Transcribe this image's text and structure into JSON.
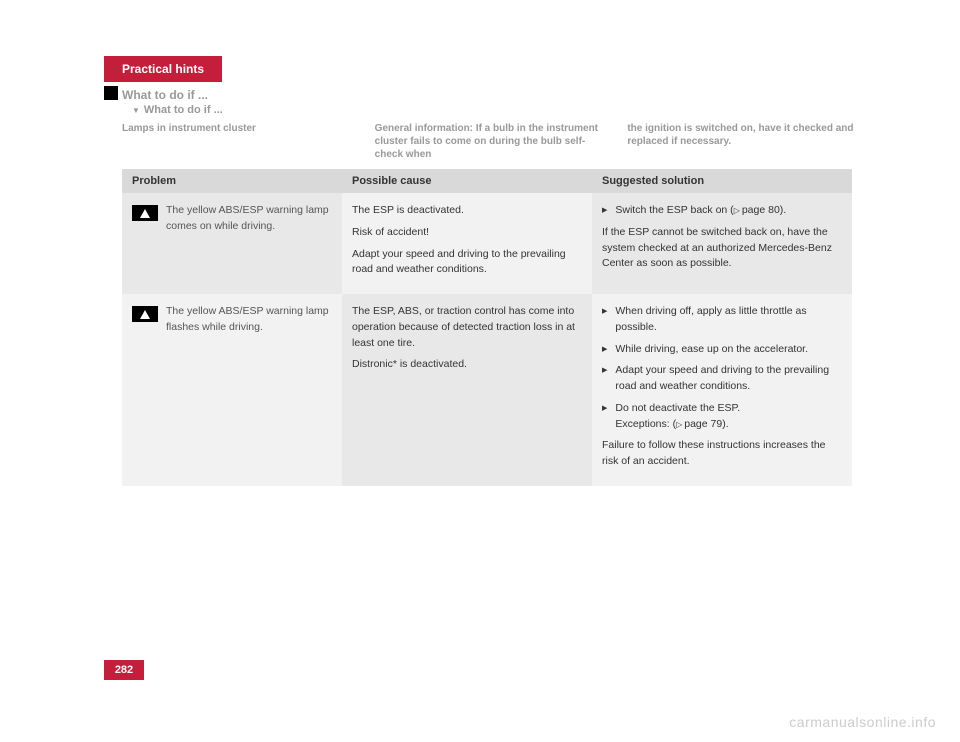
{
  "header": {
    "tab": "Practical hints",
    "section": "What to do if ...",
    "subsection": "What to do if ..."
  },
  "columns": {
    "left": "Lamps in instrument cluster",
    "middle": "General information:\nIf a bulb in the instrument cluster fails to come on during the bulb self-check when",
    "right": "the ignition is switched on, have it checked and replaced if necessary."
  },
  "table": {
    "headers": {
      "problem": "Problem",
      "cause": "Possible cause",
      "solution": "Suggested solution"
    },
    "rows": [
      {
        "problem": "The yellow ABS/ESP warning lamp comes on while driving.",
        "cause": {
          "p1": "The ESP is deactivated.",
          "p2": "Risk of accident!",
          "p3": "Adapt your speed and driving to the prevailing road and weather conditions."
        },
        "solution": {
          "bullet1": "Switch the ESP back on (",
          "bullet1_ref": "page 80).",
          "p1": "If the ESP cannot be switched back on, have the system checked at an authorized Mercedes-Benz Center as soon as possible."
        }
      },
      {
        "problem": "The yellow ABS/ESP warning lamp flashes while driving.",
        "cause": {
          "p1": "The ESP, ABS, or traction control has come into operation because of detected traction loss in at least one tire.",
          "p2": "Distronic* is deactivated."
        },
        "solution": {
          "bullet1": "When driving off, apply as little throttle as possible.",
          "bullet2": "While driving, ease up on the accelerator.",
          "bullet3": "Adapt your speed and driving to the prevailing road and weather conditions.",
          "bullet4a": "Do not deactivate the ESP.",
          "bullet4b": "Exceptions: (",
          "bullet4_ref": "page 79).",
          "p1": "Failure to follow these instructions increases the risk of an accident."
        }
      }
    ]
  },
  "pageNumber": "282",
  "watermark": "carmanualsonline.info"
}
